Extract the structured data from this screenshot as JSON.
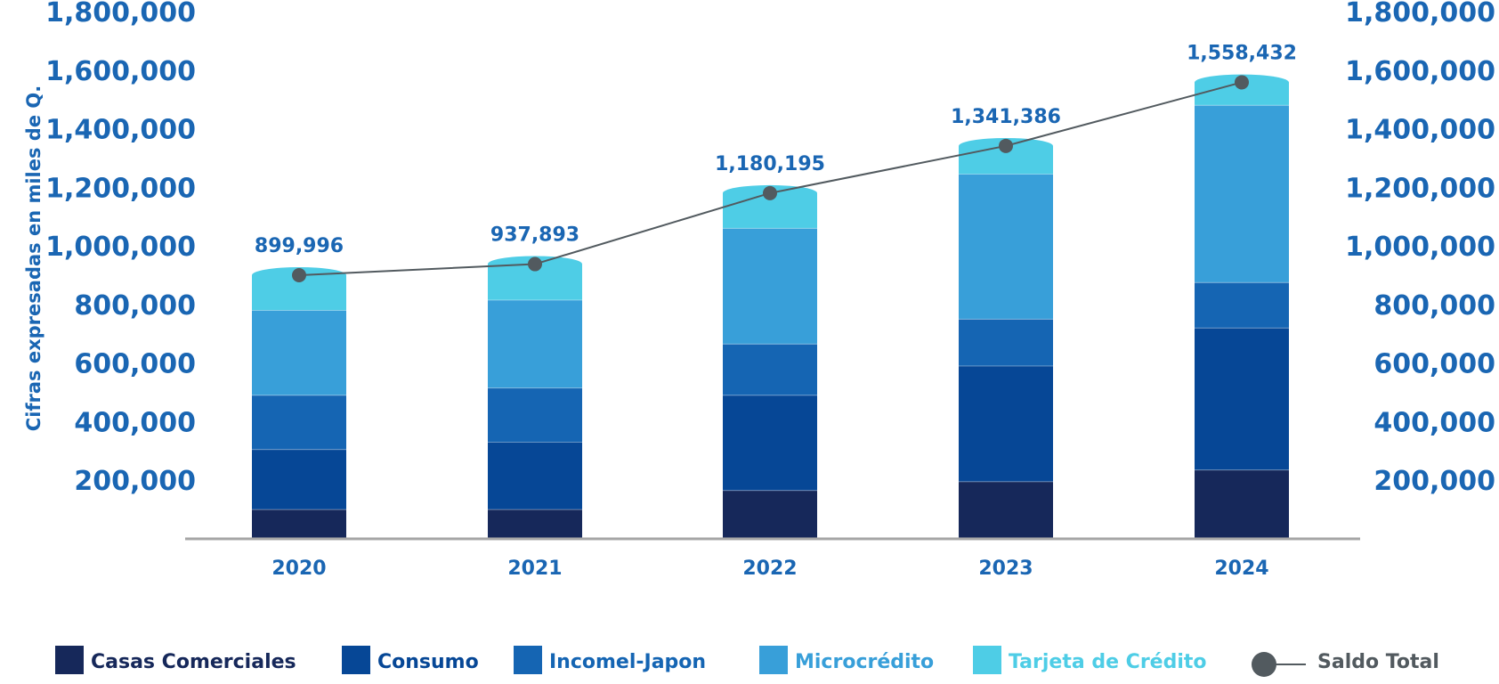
{
  "chart_data": {
    "type": "bar",
    "stacked": true,
    "title": "",
    "xlabel": "",
    "ylabel": "Cifras expresadas en miles de Q.",
    "ylim": [
      0,
      1800000
    ],
    "y_ticks": [
      "200,000",
      "400,000",
      "600,000",
      "800,000",
      "1,000,000",
      "1,200,000",
      "1,400,000",
      "1,600,000",
      "1,800,000"
    ],
    "y_tick_values": [
      200000,
      400000,
      600000,
      800000,
      1000000,
      1200000,
      1400000,
      1600000,
      1800000
    ],
    "categories": [
      "2020",
      "2021",
      "2022",
      "2023",
      "2024"
    ],
    "series": [
      {
        "name": "Casas Comerciales",
        "color": "#16285a",
        "values": [
          100000,
          100000,
          165000,
          195000,
          235000
        ]
      },
      {
        "name": "Consumo",
        "color": "#064796",
        "values": [
          205000,
          230000,
          325000,
          395000,
          485000
        ]
      },
      {
        "name": "Incomel-Japon",
        "color": "#1565b3",
        "values": [
          185000,
          185000,
          175000,
          160000,
          155000
        ]
      },
      {
        "name": "Microcrédito",
        "color": "#389fd9",
        "values": [
          290000,
          300000,
          395000,
          495000,
          605000
        ]
      },
      {
        "name": "Tarjeta de Crédito",
        "color": "#4ecde6",
        "values": [
          120000,
          123000,
          120000,
          96000,
          78000
        ]
      }
    ],
    "line_series": {
      "name": "Saldo Total",
      "color": "#525a5f",
      "values": [
        899996,
        937893,
        1180195,
        1341386,
        1558432
      ],
      "labels": [
        "899,996",
        "937,893",
        "1,180,195",
        "1,341,386",
        "1,558,432"
      ]
    },
    "grid": false,
    "legend": "bottom"
  },
  "colors": {
    "axis_text": "#1a66b3",
    "axis_line": "#a6a6a6",
    "legend_gray": "#525a5f"
  }
}
